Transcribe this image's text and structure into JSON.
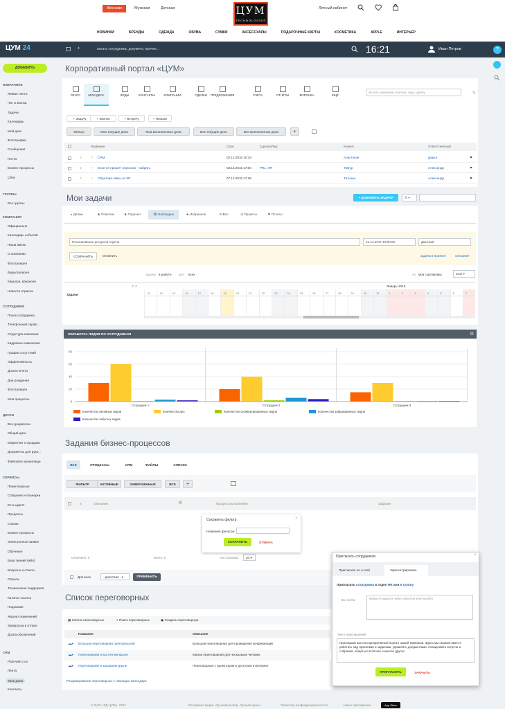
{
  "store": {
    "genders": [
      "Женская",
      "Мужская",
      "Детская"
    ],
    "logo_big": "ЦУМ",
    "logo_small": "TECHNOLOGIES",
    "cabinet": "Личный кабинет",
    "categories": [
      "НОВИНКИ",
      "БРЕНДЫ",
      "ОДЕЖДА",
      "ОБУВЬ",
      "СУМКИ",
      "АКСЕССУАРЫ",
      "ПОДАРОЧНЫЕ КАРТЫ",
      "КОСМЕТИКА",
      "APPLE",
      "ИНТЕРЬЕР"
    ]
  },
  "topbar": {
    "brand": "ЦУМ",
    "brand_num": "24",
    "search_placeholder": "искать сотрудника, документ, прочее...",
    "clock": "16:21",
    "user": "Иван Петров"
  },
  "sidebar": {
    "add": "ДОБАВИТЬ",
    "favorites": {
      "title": "ИЗБРАННОЕ",
      "items": [
        "Живая лента",
        "Чат и звонки",
        "Задачи",
        "Календарь",
        "Мой диск",
        "Фотографии",
        "Сообщения",
        "Почта",
        "Бизнес-процессы",
        "CRM"
      ]
    },
    "groups": {
      "title": "ГРУППЫ",
      "items": [
        "Все группы"
      ]
    },
    "company": {
      "title": "КОМПАНИЯ",
      "items": [
        "Официально",
        "Календарь событий",
        "Наша жизнь",
        "О компании",
        "Фотогалерея",
        "Видеогалерея",
        "Карьера, вакансии",
        "Новости отрасли"
      ]
    },
    "staff": {
      "title": "СОТРУДНИКИ",
      "items": [
        "Поиск сотрудника",
        "Телефонный справ...",
        "Структура компании",
        "Кадровые изменения",
        "График отсутствий",
        "Эффективность",
        "Доска почета",
        "Дни рождения",
        "Фотогалерея",
        "Мои процессы"
      ]
    },
    "disks": {
      "title": "ДИСКИ",
      "items": [
        "Все документы",
        "Общий диск",
        "Маркетинг и продажи",
        "Документы для руко...",
        "Файловое хранилище"
      ]
    },
    "services": {
      "title": "СЕРВИСЫ",
      "items": [
        "Переговорные",
        "Собрания и планерки",
        "Есть идея?",
        "Процессы",
        "Списки",
        "Бизнес-процессы",
        "Электронные заявки",
        "Обучение",
        "База знаний (wiki)",
        "Вопросы и ответы",
        "Опросы",
        "Техническая поддержка",
        "Каталог ссылок",
        "Подсказки",
        "Журнал изменений",
        "Заморозка и отпуск",
        "Доска объявлений"
      ]
    },
    "crm": {
      "title": "CRM",
      "items": [
        "Рабочий стол",
        "Лента",
        "Мои дела",
        "Контакты"
      ]
    }
  },
  "portal": {
    "title": "Корпоративный портал «ЦУМ»",
    "search_placeholder": "Искать компании, контакт, лид, сделку",
    "tabs": [
      "ЛЕНТА",
      "МОИ ДЕЛА",
      "ЛИДЫ",
      "КОНТАКТЫ",
      "КОМПАНИИ",
      "СДЕЛКИ",
      "ПРЕДЛОЖЕНИЯ",
      "СЧЕТА",
      "ОТЧЁТЫ",
      "ВОРОНКА",
      "ЕЩЁ"
    ],
    "quick_add": [
      "Задачу",
      "Звонок",
      "Встречу",
      "Письмо"
    ],
    "filters": [
      "Фильтр",
      "Мои текущие дела",
      "Мои выполненные дела",
      "Все текущие дела",
      "Все выполненные дела"
    ],
    "columns": [
      "Название",
      "Срок",
      "Сделка/Лид",
      "Клиент",
      "Ответственный"
    ],
    "rows": [
      [
        "CRM",
        "02.12.2015 10:33",
        "",
        "Анастасия",
        "Дарья"
      ],
      [
        "Если не пришёт опросник - набрать",
        "03.12.2015 17:00",
        "PRL, HR",
        "Тимур",
        "Александр"
      ],
      [
        "Обратная связь по КП",
        "07.12.2015 17:26",
        "",
        "Татьяна",
        "Александр"
      ]
    ]
  },
  "tasks": {
    "title": "Мои задачи",
    "add": "ДОБАВИТЬ ЗАДАЧУ",
    "tabs": [
      "Делаю",
      "Помогаю",
      "Поручил",
      "Наблюдаю",
      "Избранное",
      "Все",
      "Проекты",
      "Отчеты"
    ],
    "new_task": "Планирование ресурсов отдела",
    "deadline": "21.12.2017 19:00:00",
    "responsible": "Дмитрий",
    "save": "СОХРАНИТЬ",
    "cancel": "Отменить",
    "to_project": "задача в проекте",
    "description": "описание",
    "filter_pre": "задачи",
    "filter_status": "в работе",
    "filter_for": "для",
    "filter_all": "всех",
    "sort_pre": "по",
    "sort": "моя сортировка",
    "view": "Ещё",
    "col_task": "Задачи",
    "month": "Январь 2018",
    "days": [
      "13",
      "14",
      "15",
      "16",
      "17",
      "18",
      "19",
      "20",
      "21",
      "22",
      "23",
      "24",
      "25",
      "26",
      "27",
      "28",
      "29",
      "30",
      "31",
      "1",
      "2",
      "3",
      "4",
      "5",
      "6",
      "7"
    ]
  },
  "chart_card": {
    "title": "ОБРАБОТКА ЛИДОВ ПО СОТРУДНИКАМ"
  },
  "chart_data": {
    "type": "bar",
    "categories": [
      "Сотрудник 1",
      "Сотрудник 2",
      "Сотрудник 3"
    ],
    "ylim": [
      0,
      80
    ],
    "yticks": [
      0,
      20,
      40,
      60,
      80
    ],
    "legend_position": "bottom",
    "series": [
      {
        "name": "Количество активных лидов",
        "color": "#fa6400",
        "values": [
          30,
          20,
          15
        ]
      },
      {
        "name": "Количество дел",
        "color": "#fecc2f",
        "values": [
          60,
          40,
          30
        ]
      },
      {
        "name": "Количество сконвертированных лидов",
        "color": "#9dcf00",
        "values": [
          1,
          2,
          1
        ]
      },
      {
        "name": "Количество забракованных лидов",
        "color": "#1d96d3",
        "values": [
          3,
          6,
          1
        ]
      },
      {
        "name": "Количество забытых лидов",
        "color": "#2a1dbe",
        "values": [
          2,
          4,
          1
        ]
      }
    ]
  },
  "bp": {
    "title": "Задания бизнес-процессов",
    "tabs": [
      "ВСЕ",
      "ПРОЦЕССЫ",
      "CRM",
      "ФАЙЛЫ",
      "СПИСКИ"
    ],
    "filters": [
      "ФИЛЬТР",
      "АКТИВНЫЕ",
      "ЗАВЕРШЕННЫЕ",
      "ВСЕ"
    ],
    "cols": [
      "Описание",
      "Процесс выполнения",
      "Задание"
    ],
    "shown": "Отмечено: 0",
    "total": "Всего: 0",
    "per_page": "На странице:",
    "per_page_val": "20",
    "for_all": "Для всех",
    "action": "- действия -",
    "apply": "ПРИМЕНИТЬ"
  },
  "save_filter": {
    "title": "Сохранить фильтр",
    "label": "Название фильтра:",
    "save": "СОХРАНИТЬ",
    "cancel": "ОТМЕНА"
  },
  "rooms": {
    "title": "Список переговорных",
    "links": [
      "Список переговорных",
      "Поиск переговорных",
      "Создать переговорную"
    ],
    "cols": [
      "Название",
      "Описание"
    ],
    "rows": [
      [
        "Большая переговорная (центральная)",
        "Большая переговорная для проведения конференций"
      ],
      [
        "Переговорная в восточном крыле",
        "Малая переговорная для нескольких человек"
      ],
      [
        "Переговорная в западном крыле",
        "Переговорная с проектором и доступом в интернет"
      ]
    ],
    "footer": "Резервирование переговорных с помощью календаря"
  },
  "invite": {
    "title": "Пригласить сотрудников",
    "tabs": [
      "Пригласить по e-mail",
      "Зарегистрировать"
    ],
    "line_pre": "Пригласить",
    "line_link1": "сотрудника",
    "line_mid": "в отдел",
    "line_link2": "HR",
    "line_end": "или",
    "line_link3": "в группу",
    "email_label": "Эл. почта",
    "email_placeholder": "Введите адреса через запятую или пробел",
    "text_label": "Текст приглашения",
    "text": "Приглашаю вас на корпоративный портал нашей компании. Здесь мы сможем вместе работать над проектами и задачами, управлять документами, планировать встречи и собрания, общаться в блогах и многое другое.",
    "send": "ПРИГЛАСИТЬ",
    "close": "ЗАКРЫТЬ"
  },
  "footer": {
    "copyright": "© ОАО «ТД ЦУМ», 2017",
    "links": [
      "Регламент акции «Лучший выбор. Лучшая цена»",
      "Политика конфиденциальности",
      "Наше приложение"
    ],
    "appstore": "App Store"
  }
}
